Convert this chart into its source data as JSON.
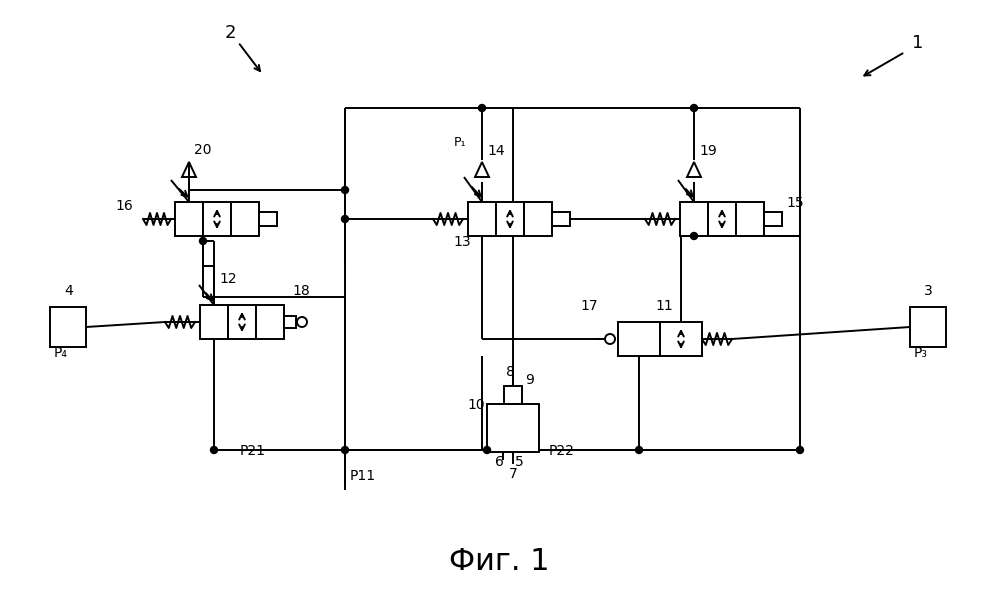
{
  "title": "Фиг. 1",
  "title_fontsize": 22,
  "bg_color": "#ffffff",
  "line_color": "#000000",
  "lw": 1.4,
  "label_1": "1",
  "label_2": "2",
  "label_3": "3",
  "label_4": "4",
  "label_5": "5",
  "label_6": "6",
  "label_7": "7",
  "label_8": "8",
  "label_9": "9",
  "label_10": "10",
  "label_11": "11",
  "label_12": "12",
  "label_13": "13",
  "label_14": "14",
  "label_15": "15",
  "label_16": "16",
  "label_17": "17",
  "label_18": "18",
  "label_19": "19",
  "label_20": "20",
  "label_P1": "P₁",
  "label_P3": "P₃",
  "label_P4": "P₄",
  "label_P11": "P11",
  "label_P21": "P21",
  "label_P22": "P22"
}
